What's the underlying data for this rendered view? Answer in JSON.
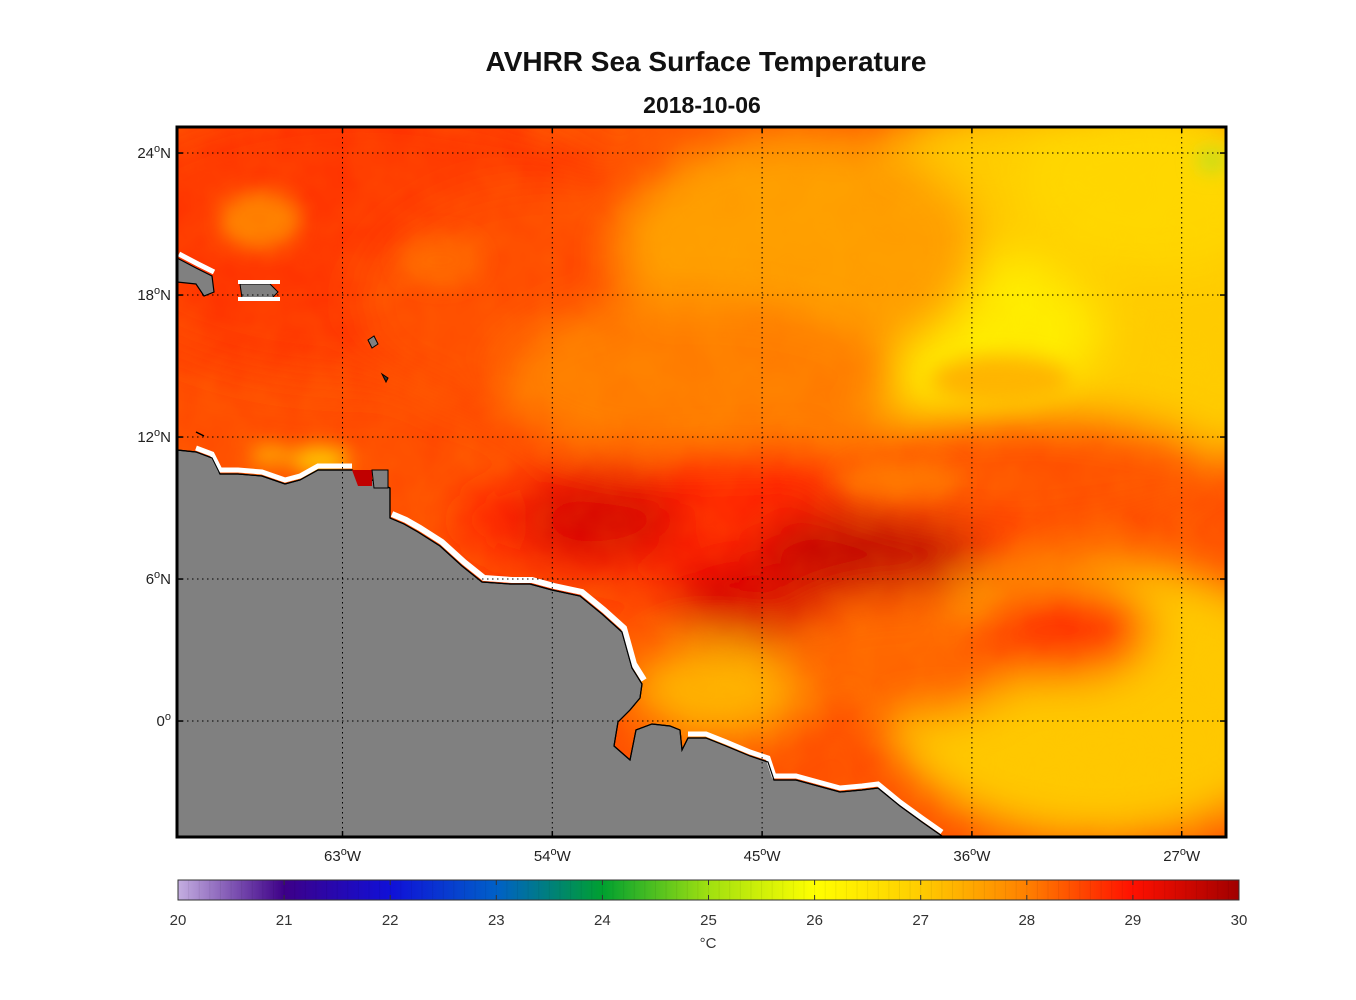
{
  "title": "AVHRR Sea Surface Temperature",
  "subtitle": "2018-10-06",
  "map": {
    "lat_labels": [
      {
        "lat": 24,
        "main": "24",
        "sup": "o",
        "hem": "N"
      },
      {
        "lat": 18,
        "main": "18",
        "sup": "o",
        "hem": "N"
      },
      {
        "lat": 12,
        "main": "12",
        "sup": "o",
        "hem": "N"
      },
      {
        "lat": 6,
        "main": "6",
        "sup": "o",
        "hem": "N"
      },
      {
        "lat": 0,
        "main": "0",
        "sup": "o",
        "hem": ""
      }
    ],
    "lon_labels": [
      {
        "lon": -63,
        "main": "63",
        "sup": "o",
        "hem": "W"
      },
      {
        "lon": -54,
        "main": "54",
        "sup": "o",
        "hem": "W"
      },
      {
        "lon": -45,
        "main": "45",
        "sup": "o",
        "hem": "W"
      },
      {
        "lon": -36,
        "main": "36",
        "sup": "o",
        "hem": "W"
      },
      {
        "lon": -27,
        "main": "27",
        "sup": "o",
        "hem": "W"
      }
    ],
    "lon_range": [
      -70.1,
      -25.1
    ],
    "lat_range": [
      -4.9,
      25.1
    ],
    "grid": "dotted",
    "land_color": "#808080",
    "coast_color": "#000000"
  },
  "colorbar": {
    "min": 20,
    "max": 30,
    "ticks": [
      "20",
      "21",
      "22",
      "23",
      "24",
      "25",
      "26",
      "27",
      "28",
      "29",
      "30"
    ],
    "unit": "°C",
    "stops": [
      {
        "v": 20,
        "c": "#c4aee0"
      },
      {
        "v": 21,
        "c": "#3d0088"
      },
      {
        "v": 22,
        "c": "#1010d8"
      },
      {
        "v": 23,
        "c": "#0060c8"
      },
      {
        "v": 24,
        "c": "#00a030"
      },
      {
        "v": 25,
        "c": "#a0e010"
      },
      {
        "v": 26,
        "c": "#ffff00"
      },
      {
        "v": 27,
        "c": "#ffcc00"
      },
      {
        "v": 28,
        "c": "#ff8000"
      },
      {
        "v": 29,
        "c": "#ff1000"
      },
      {
        "v": 30,
        "c": "#a00000"
      }
    ]
  }
}
